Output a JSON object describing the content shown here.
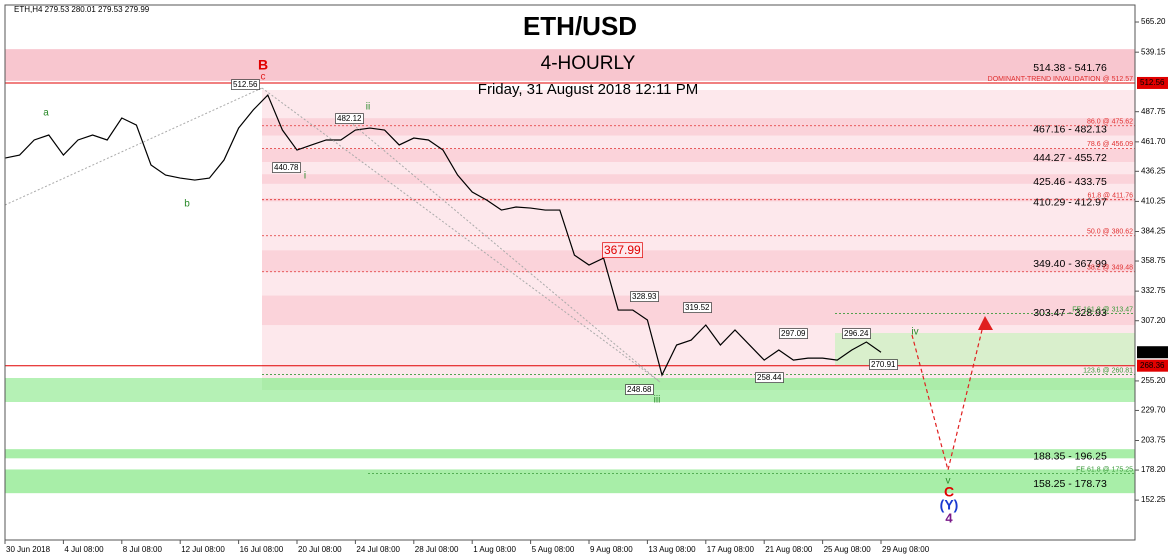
{
  "chart_data": {
    "type": "line",
    "title": "ETH/USD",
    "subtitle": "4-HOURLY",
    "date": "Friday, 31 August 2018 12:11 PM",
    "symbol_info": "ETH,H4  279.53 280.01 279.53 279.99",
    "categories": [
      "30 Jun 2018",
      null,
      null,
      null,
      "4 Jul 08:00",
      null,
      null,
      null,
      "8 Jul 08:00",
      null,
      null,
      null,
      "12 Jul 08:00",
      null,
      null,
      null,
      "16 Jul 08:00",
      null,
      null,
      null,
      "20 Jul 08:00",
      null,
      null,
      null,
      "24 Jul 08:00",
      null,
      null,
      null,
      "28 Jul 08:00",
      null,
      null,
      null,
      "1 Aug 08:00",
      null,
      null,
      null,
      "5 Aug 08:00",
      null,
      null,
      null,
      "9 Aug 08:00",
      null,
      null,
      null,
      "13 Aug 08:00",
      null,
      null,
      null,
      "17 Aug 08:00",
      null,
      null,
      null,
      "21 Aug 08:00",
      null,
      null,
      null,
      "25 Aug 08:00",
      null,
      null,
      null,
      "29 Aug 08:00"
    ],
    "values": [
      447.7,
      450.3,
      463.3,
      467.6,
      450.3,
      463.3,
      467.6,
      463.3,
      482.3,
      476.2,
      441.7,
      433.0,
      430.4,
      428.7,
      430.4,
      446.0,
      473.6,
      489.2,
      502.1,
      471.9,
      454.6,
      459.0,
      463.3,
      463.3,
      471.9,
      473.6,
      471.9,
      459.0,
      465.0,
      463.3,
      454.6,
      433.0,
      418.4,
      411.4,
      402.8,
      405.4,
      404.5,
      402.8,
      402.8,
      363.9,
      355.3,
      361.3,
      316.4,
      316.4,
      307.8,
      260.3,
      286.2,
      290.5,
      303.5,
      286.2,
      299.2,
      286.2,
      273.2,
      281.9,
      273.2,
      274.9,
      274.9,
      273.2,
      281.9,
      288.8,
      280.0
    ],
    "color": "#000000",
    "ylim": [
      117.8,
      579.9
    ],
    "yticks": [
      {
        "value": 565.2,
        "label": "565.20"
      },
      539.15,
      487.75,
      {
        "value": 461.7,
        "label": "461.70"
      },
      436.25,
      410.25,
      384.25,
      358.75,
      332.75,
      {
        "value": 307.2,
        "label": "307.20"
      },
      {
        "value": 255.2,
        "label": "255.20"
      },
      {
        "value": 229.7,
        "label": "229.70"
      },
      203.75,
      {
        "value": 178.2,
        "label": "178.20"
      },
      152.25
    ],
    "price_markers": [
      {
        "value": 512.56,
        "color": "#e00000"
      },
      {
        "value": 279.99,
        "color": "#000000"
      },
      {
        "value": 268.36,
        "color": "#e00000"
      }
    ],
    "zones": [
      {
        "label": "514.38 - 541.76",
        "low": 514.38,
        "high": 541.76,
        "color": "#f8c6cf"
      },
      {
        "label": "467.16 - 482.13",
        "low": 467.16,
        "high": 482.13,
        "color": "#fbd3da"
      },
      {
        "label": "444.27 - 455.72",
        "low": 444.27,
        "high": 455.72,
        "color": "#fbd3da"
      },
      {
        "label": "425.46 - 433.75",
        "low": 425.46,
        "high": 433.75,
        "color": "#fbd3da"
      },
      {
        "label": "410.29 - 412.97",
        "low": 410.29,
        "high": 412.97,
        "color": "#fbd3da"
      },
      {
        "label": "349.40 - 367.99",
        "low": 349.4,
        "high": 367.99,
        "color": "#fbd3da"
      },
      {
        "label": "303.47 - 328.93",
        "low": 303.47,
        "high": 328.93,
        "color": "#fbd3da"
      },
      {
        "label": "188.35 - 196.25",
        "low": 188.35,
        "high": 196.25,
        "color": "#a8eea8"
      },
      {
        "label": "158.25 - 178.73",
        "low": 158.25,
        "high": 178.73,
        "color": "#a8eea8"
      }
    ],
    "levels": [
      {
        "label": "DOMINANT-TREND INVALIDATION @ 512.57",
        "value": 512.57,
        "color": "#e03030"
      },
      {
        "label": "86.0 @ 475.62",
        "value": 475.62,
        "color": "#e03030"
      },
      {
        "label": "78.6 @ 456.09",
        "value": 456.09,
        "color": "#e03030"
      },
      {
        "label": "61.8 @ 411.76",
        "value": 411.76,
        "color": "#e03030"
      },
      {
        "label": "50.0 @ 380.62",
        "value": 380.62,
        "color": "#e03030"
      },
      {
        "label": "38.2 @ 349.48",
        "value": 349.48,
        "color": "#e03030"
      },
      {
        "label": "FE 161.8 @ 313.47",
        "value": 313.47,
        "color": "#3a9a3a"
      },
      {
        "label": "123.6 @ 260.81",
        "value": 260.81,
        "color": "#3a9a3a"
      },
      {
        "label": "FE 61.8 @ 175.25",
        "value": 175.25,
        "color": "#3a9a3a"
      }
    ],
    "annotations": [
      "512.56",
      "440.78",
      "482.12",
      "367.99",
      "328.93",
      "319.52",
      "297.09",
      "296.24",
      "270.91",
      "258.44",
      "248.68"
    ],
    "wave_labels": [
      "a",
      "b",
      "c",
      "B",
      "i",
      "ii",
      "iii",
      "iv",
      "v",
      "C",
      "(Y)",
      "4"
    ]
  }
}
